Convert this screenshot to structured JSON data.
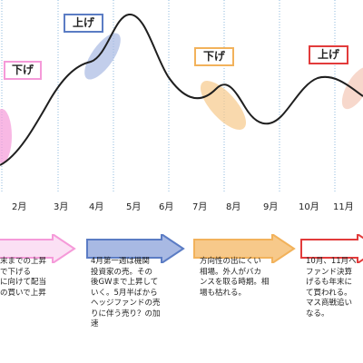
{
  "colors": {
    "line": "#1f1f1f",
    "pink": "#f59ad9",
    "blue": "#5b7cc4",
    "blue_fill": "#a8b9e3",
    "orange": "#f2b25b",
    "orange_fill": "#f7c98a",
    "red": "#e23b3b",
    "red_fill": "#f4c7b6",
    "grid": "#8cb8de"
  },
  "tags": [
    {
      "text": "下げ",
      "color": "pink"
    },
    {
      "text": "上げ",
      "color": "blue"
    },
    {
      "text": "下げ",
      "color": "orange"
    },
    {
      "text": "上げ",
      "color": "red"
    }
  ],
  "months": [
    "2月",
    "3月",
    "4月",
    "5月",
    "6月",
    "7月",
    "8月",
    "9月",
    "10月",
    "11月"
  ],
  "notes": [
    {
      "text": "末までの上昇\nで下げる\nに向けて配当\nの買いで上昇"
    },
    {
      "text": "4月第一週は機関\n投資家の売。その\n後GWまで上昇して\nいく。5月半ばから\nヘッジファンドの売\nりに伴う売り？の加\n速"
    },
    {
      "text": "方向性の出にくい\n相場。外人がバカ\nンスを取る時期。相\n場も枯れる。"
    },
    {
      "text": "10月、11月へ\nファンド決算\nげるも年末に\nて買われる。\nマス商戦追い\nなる。"
    }
  ]
}
